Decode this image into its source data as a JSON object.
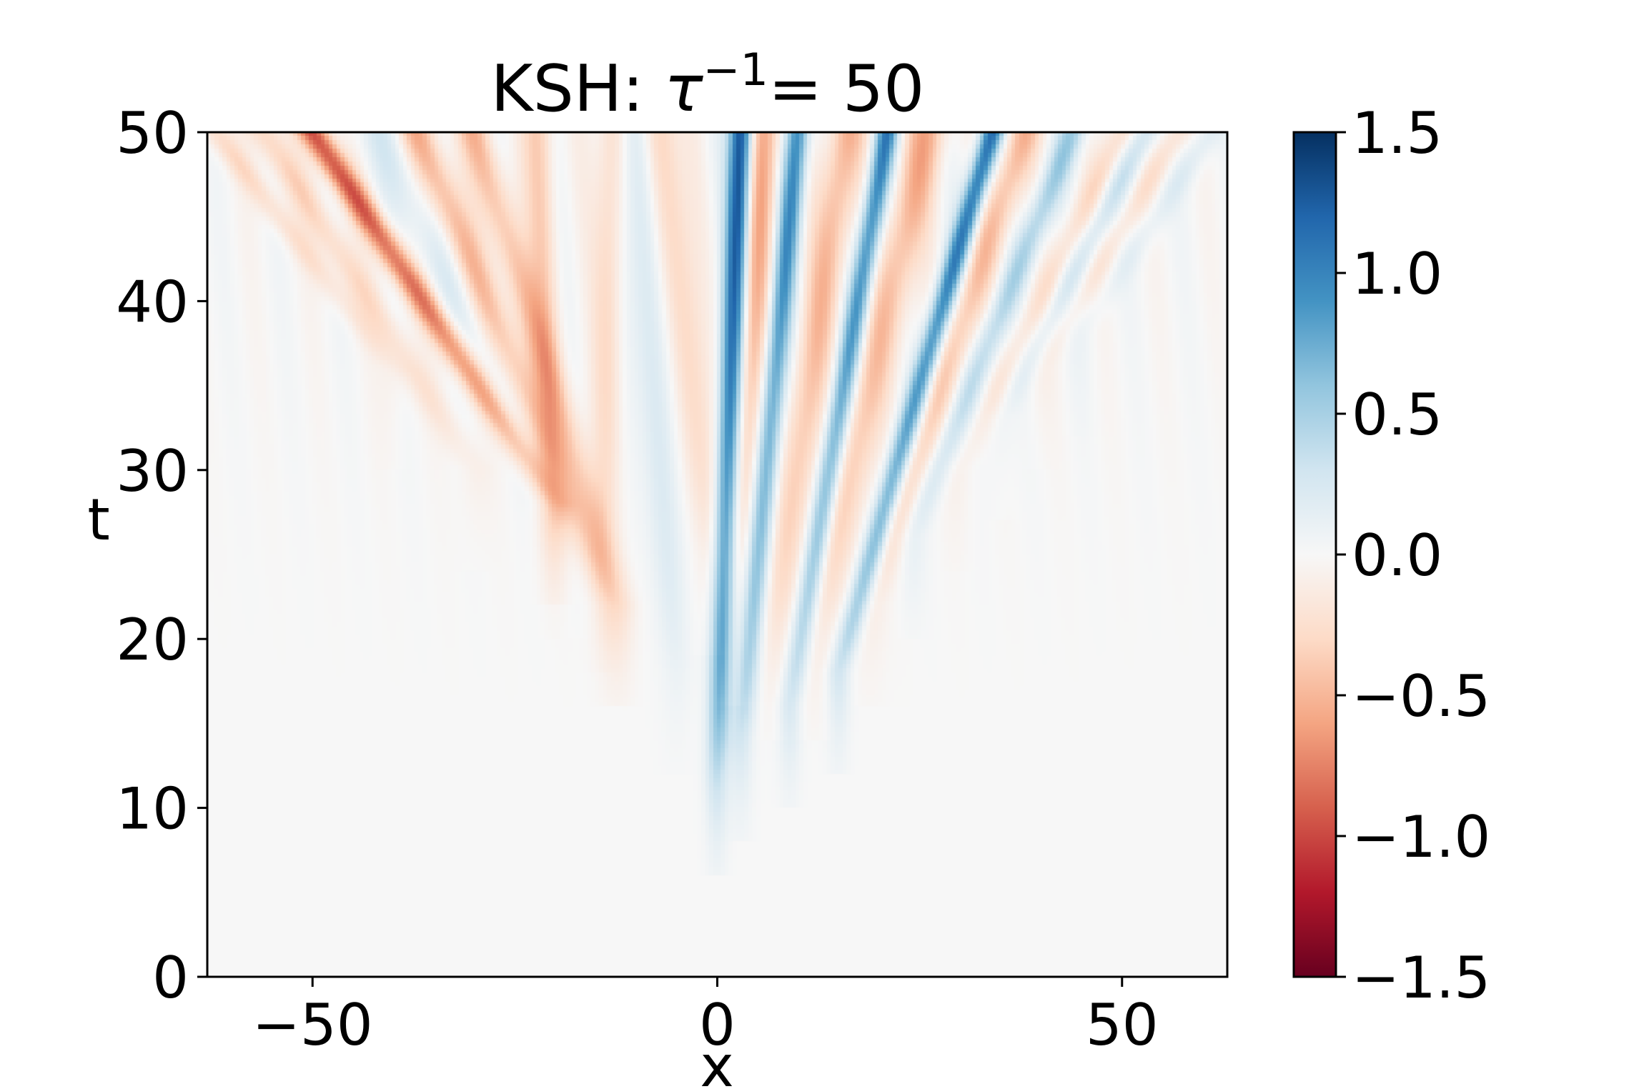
{
  "chart_data": {
    "type": "heatmap",
    "title_prefix": "KSH: ",
    "title_tau": "τ",
    "title_exp": "−1",
    "title_suffix": "= 50",
    "xlabel": "x",
    "ylabel": "t",
    "xlim": [
      -63,
      63
    ],
    "ylim": [
      0,
      50
    ],
    "xticks": [
      -50,
      0,
      50
    ],
    "xtick_labels": [
      "−50",
      "0",
      "50"
    ],
    "yticks": [
      0,
      10,
      20,
      30,
      40,
      50
    ],
    "ytick_labels": [
      "0",
      "10",
      "20",
      "30",
      "40",
      "50"
    ],
    "colorbar": {
      "vmin": -1.5,
      "vmax": 1.5,
      "ticks": [
        -1.5,
        -1.0,
        -0.5,
        0.0,
        0.5,
        1.0,
        1.5
      ],
      "tick_labels": [
        "−1.5",
        "−1.0",
        "−0.5",
        "0.0",
        "0.5",
        "1.0",
        "1.5"
      ],
      "colormap": "RdBu",
      "stops": [
        "#67001f",
        "#b2182b",
        "#d6604d",
        "#f4a582",
        "#fddbc7",
        "#f7f7f7",
        "#d1e5f0",
        "#92c5de",
        "#4393c3",
        "#2166ac",
        "#053061"
      ]
    },
    "streaks": [
      {
        "t0": 28,
        "x0": -20,
        "x1": -50,
        "amp": -1.0,
        "width": 1.4
      },
      {
        "t0": 22,
        "x0": -13,
        "x1": -37,
        "amp": -0.55,
        "width": 1.6
      },
      {
        "t0": 30,
        "x0": -30,
        "x1": -56,
        "amp": -0.35,
        "width": 1.5
      },
      {
        "t0": 26,
        "x0": -18,
        "x1": -42,
        "amp": 0.22,
        "width": 2.0
      },
      {
        "t0": 36,
        "x0": -40,
        "x1": -62,
        "amp": -0.3,
        "width": 1.3
      },
      {
        "t0": 22,
        "x0": -12,
        "x1": -30,
        "amp": -0.5,
        "width": 1.5
      },
      {
        "t0": 26,
        "x0": -20,
        "x1": -22,
        "amp": -0.4,
        "width": 1.3
      },
      {
        "t0": 24,
        "x0": -14,
        "x1": -13,
        "amp": -0.35,
        "width": 1.3
      },
      {
        "t0": 18,
        "x0": -5,
        "x1": -10,
        "amp": 0.35,
        "width": 1.4
      },
      {
        "t0": 25,
        "x0": -1,
        "x1": -7,
        "amp": -0.45,
        "width": 1.5
      },
      {
        "t0": 12,
        "x0": 0,
        "x1": 3,
        "amp": 1.4,
        "width": 1.0
      },
      {
        "t0": 22,
        "x0": 2,
        "x1": 6,
        "amp": -0.6,
        "width": 1.4
      },
      {
        "t0": 14,
        "x0": 3,
        "x1": 10,
        "amp": 1.0,
        "width": 1.0
      },
      {
        "t0": 20,
        "x0": 7,
        "x1": 16,
        "amp": -0.55,
        "width": 1.6
      },
      {
        "t0": 16,
        "x0": 9,
        "x1": 21,
        "amp": 1.05,
        "width": 1.0
      },
      {
        "t0": 20,
        "x0": 12,
        "x1": 26,
        "amp": -0.55,
        "width": 1.8
      },
      {
        "t0": 18,
        "x0": 15,
        "x1": 34,
        "amp": 1.15,
        "width": 1.0
      },
      {
        "t0": 22,
        "x0": 19,
        "x1": 38,
        "amp": -0.5,
        "width": 1.5
      },
      {
        "t0": 26,
        "x0": 24,
        "x1": 44,
        "amp": 0.55,
        "width": 1.2
      },
      {
        "t0": 30,
        "x0": 30,
        "x1": 50,
        "amp": -0.3,
        "width": 1.3
      },
      {
        "t0": 33,
        "x0": 35,
        "x1": 53,
        "amp": 0.35,
        "width": 1.2
      },
      {
        "t0": 36,
        "x0": 40,
        "x1": 57,
        "amp": -0.25,
        "width": 1.3
      },
      {
        "t0": 38,
        "x0": 45,
        "x1": 61,
        "amp": 0.2,
        "width": 1.3
      }
    ]
  }
}
